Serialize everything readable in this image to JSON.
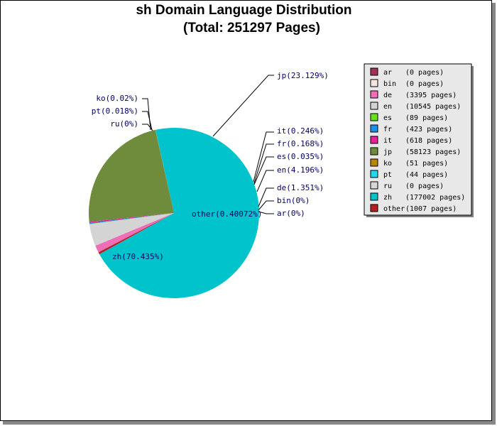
{
  "chart_data": {
    "type": "pie",
    "title": "sh Domain Language Distribution",
    "subtitle": "(Total: 251297 Pages)",
    "slices": [
      {
        "name": "ar",
        "pages": 0,
        "label": "ar(0%)",
        "legend": "(0 pages)",
        "color": "#a0325a"
      },
      {
        "name": "bin",
        "pages": 0,
        "label": "bin(0%)",
        "legend": "(0 pages)",
        "color": "#f5e6e0"
      },
      {
        "name": "de",
        "pages": 3395,
        "label": "de(1.351%)",
        "legend": "(3395 pages)",
        "color": "#ee6fb8"
      },
      {
        "name": "en",
        "pages": 10545,
        "label": "en(4.196%)",
        "legend": "(10545 pages)",
        "color": "#d4d4d4"
      },
      {
        "name": "es",
        "pages": 89,
        "label": "es(0.035%)",
        "legend": "(89 pages)",
        "color": "#66e020"
      },
      {
        "name": "fr",
        "pages": 423,
        "label": "fr(0.168%)",
        "legend": "(423 pages)",
        "color": "#1e90e6"
      },
      {
        "name": "it",
        "pages": 618,
        "label": "it(0.246%)",
        "legend": "(618 pages)",
        "color": "#e8209a"
      },
      {
        "name": "jp",
        "pages": 58123,
        "label": "jp(23.129%)",
        "legend": "(58123 pages)",
        "color": "#6e8c3c"
      },
      {
        "name": "ko",
        "pages": 51,
        "label": "ko(0.02%)",
        "legend": "(51 pages)",
        "color": "#b8860b"
      },
      {
        "name": "pt",
        "pages": 44,
        "label": "pt(0.018%)",
        "legend": "(44 pages)",
        "color": "#22d8f0"
      },
      {
        "name": "ru",
        "pages": 0,
        "label": "ru(0%)",
        "legend": "(0 pages)",
        "color": "#d8d8d8"
      },
      {
        "name": "zh",
        "pages": 177002,
        "label": "zh(70.435%)",
        "legend": "(177002 pages)",
        "color": "#00c3cc"
      },
      {
        "name": "other",
        "pages": 1007,
        "label": "other(0.40072%)",
        "legend": "(1007 pages)",
        "color": "#b22222"
      }
    ]
  }
}
